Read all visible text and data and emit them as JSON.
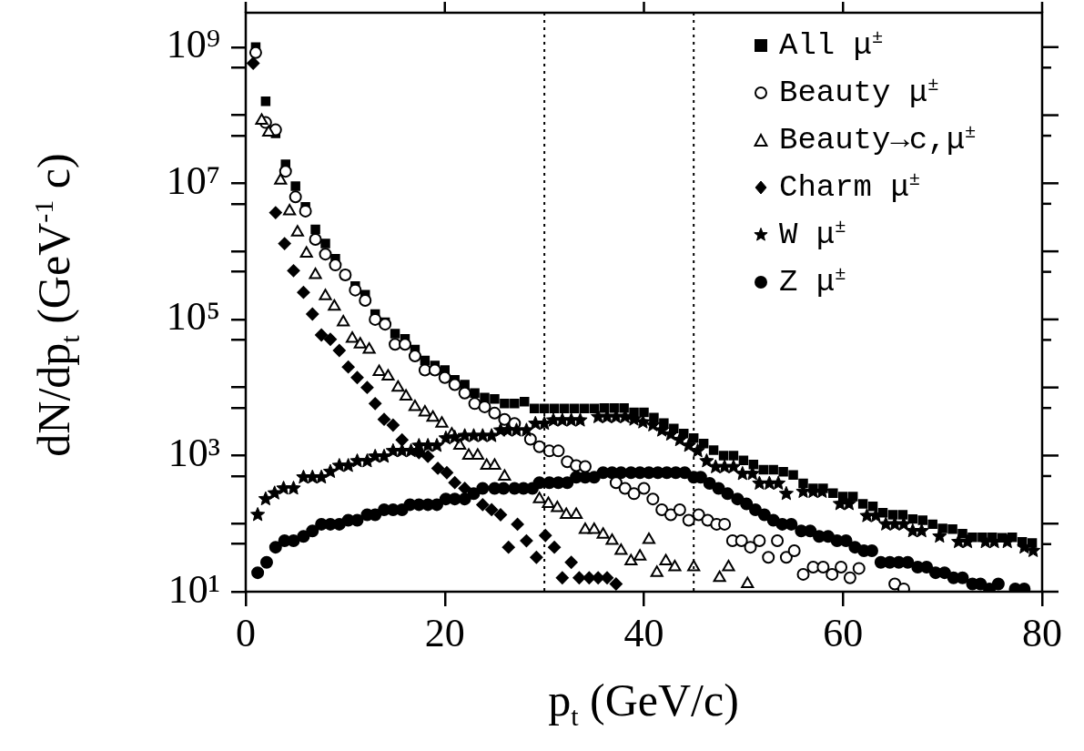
{
  "chart_data": {
    "type": "scatter",
    "xlabel": "p$_{t}$ (GeV/c)",
    "ylabel": "dN/dp$_{t}$ (GeV$^{-1}$ c)",
    "log": "y",
    "xlim": [
      0,
      80
    ],
    "xticks": [
      0,
      20,
      40,
      60,
      80
    ],
    "ylim": [
      10,
      3200000000.0
    ],
    "yticks": [
      {
        "value": 10,
        "label": "10¹"
      },
      {
        "value": 50,
        "label": null
      },
      {
        "value": 100,
        "label": null
      },
      {
        "value": 500,
        "label": null
      },
      {
        "value": 1000,
        "label": "10³"
      },
      {
        "value": 5000,
        "label": null
      },
      {
        "value": 10000,
        "label": null
      },
      {
        "value": 50000,
        "label": null
      },
      {
        "value": 100000,
        "label": "10⁵"
      },
      {
        "value": 500000,
        "label": null
      },
      {
        "value": 1000000,
        "label": null
      },
      {
        "value": 5000000,
        "label": null
      },
      {
        "value": 10000000,
        "label": "10⁷"
      },
      {
        "value": 50000000,
        "label": null
      },
      {
        "value": 100000000,
        "label": null
      },
      {
        "value": 500000000,
        "label": null
      },
      {
        "value": 1000000000,
        "label": "10⁹"
      }
    ],
    "legend": "top right",
    "ref_lines": [
      {
        "axis": "x",
        "value": 30,
        "line_style": "dotted"
      },
      {
        "axis": "x",
        "value": 45,
        "line_style": "dotted"
      }
    ],
    "series": [
      {
        "name": "All μ$^{±}$",
        "color": "#000000",
        "marker": "square",
        "x": [
          1,
          2,
          3,
          4,
          5,
          6,
          7,
          8,
          9,
          10,
          11,
          12,
          13,
          14,
          15,
          16,
          17,
          18,
          19,
          20,
          21,
          22,
          23,
          24,
          25,
          26,
          27,
          28,
          29,
          30,
          31,
          32,
          33,
          34,
          35,
          36,
          37,
          38,
          39,
          40,
          41,
          42,
          43,
          44,
          45,
          46,
          47,
          48,
          49,
          50,
          51,
          52,
          53,
          54,
          55,
          56,
          57,
          58,
          59,
          60,
          61,
          62,
          63,
          64,
          65,
          66,
          67,
          68,
          69,
          70,
          71,
          72,
          73,
          74,
          75,
          76,
          77,
          78,
          79
        ],
        "values": [
          1000000000.0,
          160000000.0,
          54000000.0,
          19000000.0,
          9100000.0,
          4500000.0,
          2100000.0,
          1300000.0,
          780000.0,
          450000.0,
          310000.0,
          230000.0,
          120000.0,
          91000.0,
          62000.0,
          52000.0,
          36000.0,
          25000.0,
          21000.0,
          18000.0,
          13000.0,
          11000.0,
          8300,
          7100,
          6800,
          5800,
          5800,
          6200,
          4900,
          4900,
          4900,
          4900,
          4900,
          4900,
          4900,
          5000,
          5000,
          5000,
          4300,
          4300,
          3600,
          3000,
          2500,
          2100,
          1800,
          1500,
          1200,
          1000,
          1000,
          850,
          740,
          620,
          620,
          580,
          520,
          390,
          330,
          330,
          280,
          250,
          250,
          195,
          180,
          145,
          135,
          135,
          117,
          112,
          98,
          85,
          83,
          71,
          63,
          63,
          63,
          62,
          63,
          54,
          52
        ]
      },
      {
        "name": "Beauty μ$^{±}$",
        "color": "#000000",
        "marker": "circle",
        "x": [
          1,
          2,
          3,
          4,
          5,
          6,
          7,
          8,
          9,
          10,
          11,
          12,
          13,
          14,
          15,
          16,
          17,
          18,
          19,
          20,
          21,
          22,
          23,
          24,
          25,
          26,
          27,
          28.6,
          29.5,
          30.5,
          31.4,
          32.3,
          33.2,
          34.1,
          37.2,
          38.1,
          39,
          40,
          40.9,
          41.8,
          42.7,
          43.6,
          44.5,
          45.5,
          46.4,
          47.3,
          48.1,
          48.9,
          49.8,
          50.7,
          51.6,
          52.5,
          53.4,
          54.3,
          55.1,
          56,
          57,
          58,
          58.9,
          59.8,
          60.7,
          61.6,
          65.2,
          66.1
        ],
        "values": [
          830000000.0,
          78000000.0,
          61000000.0,
          15000000.0,
          6300000.0,
          3900000.0,
          1500000.0,
          910000.0,
          630000.0,
          450000.0,
          270000.0,
          190000.0,
          100000.0,
          85000.0,
          43000.0,
          43000.0,
          29000.0,
          18000.0,
          18000.0,
          14000.0,
          11000.0,
          8300,
          5800,
          5200,
          4200,
          3400,
          2950,
          1740,
          1350,
          1170,
          1170,
          810,
          710,
          690,
          400,
          330,
          275,
          330,
          230,
          160,
          135,
          160,
          112,
          135,
          112,
          98,
          98,
          56,
          56,
          45,
          56,
          32,
          56,
          32,
          40,
          18,
          23,
          23,
          18,
          23,
          16,
          22,
          13,
          11
        ]
      },
      {
        "name": "Beauty→c,μ$^{±}$",
        "color": "#000000",
        "marker": "triangle",
        "x": [
          1.6,
          2.3,
          3.5,
          4.4,
          5.2,
          6.1,
          7,
          8,
          8.9,
          9.8,
          10.7,
          11.5,
          12.4,
          13.4,
          14.3,
          15.3,
          16.1,
          17,
          18,
          18.8,
          19.7,
          20.7,
          21.5,
          22.4,
          23.3,
          24.2,
          25,
          26,
          29.5,
          30.4,
          31.3,
          32.2,
          33.2,
          34.1,
          35,
          35.9,
          36.8,
          37.7,
          38.7,
          39.6,
          40.5,
          41.3,
          42.2,
          43.1,
          45,
          47.6,
          48.5,
          50.4
        ],
        "values": [
          83000000.0,
          56000000.0,
          11000000.0,
          3900000.0,
          1900000.0,
          930000.0,
          450000.0,
          220000.0,
          155000.0,
          91000.0,
          52000.0,
          43000.0,
          36000.0,
          17000.0,
          14500.0,
          10000.0,
          7400,
          5200,
          4300,
          3600,
          2950,
          2050,
          1400,
          1000,
          1000,
          710,
          710,
          490,
          230,
          195,
          170,
          135,
          135,
          81,
          81,
          69,
          56,
          40,
          28,
          33,
          58,
          19,
          28,
          23,
          23,
          16,
          23,
          13
        ]
      },
      {
        "name": "Charm μ$^{±}$",
        "color": "#000000",
        "marker": "diamond",
        "x": [
          0.75,
          3,
          3.9,
          4.8,
          5.8,
          6.7,
          7.6,
          8.5,
          9.4,
          10.3,
          11.2,
          12.2,
          13,
          13.9,
          14.8,
          15.7,
          17.4,
          18.3,
          19.3,
          20.2,
          21,
          22,
          23.8,
          24.7,
          25.6,
          26.4,
          27.3,
          28.2,
          29.2,
          30.1,
          31,
          31.8,
          32.7,
          33.5,
          34.5,
          35.4,
          36.3,
          37.2
        ],
        "values": [
          580000000.0,
          3700000.0,
          1300000.0,
          520000.0,
          250000.0,
          120000.0,
          59000.0,
          51000.0,
          35000.0,
          20000.0,
          14000.0,
          10000.0,
          5800,
          3400,
          2800,
          1700,
          1100,
          970,
          650,
          560,
          400,
          330,
          190,
          160,
          135,
          45,
          98,
          56,
          32,
          67,
          45,
          16,
          27,
          16,
          16,
          16,
          16,
          13
        ]
      },
      {
        "name": "W μ$^{±}$",
        "color": "#000000",
        "marker": "star",
        "x": [
          1.2,
          2,
          2.9,
          3.8,
          4.8,
          5.8,
          6.7,
          7.6,
          8.5,
          9.4,
          10.3,
          11.2,
          12.2,
          13,
          13.9,
          14.8,
          15.7,
          16.6,
          17.4,
          18.3,
          19.2,
          20.1,
          21,
          22,
          22.9,
          23.8,
          24.7,
          25.6,
          26.3,
          27.2,
          28.2,
          29.1,
          30,
          30.9,
          31.8,
          32.7,
          33.6,
          35.4,
          36.3,
          37.2,
          38.1,
          39,
          39.9,
          40.9,
          41.8,
          42.7,
          43.6,
          44.5,
          45.4,
          46.3,
          47.2,
          48.1,
          49,
          49.9,
          50.9,
          51.6,
          52.6,
          53.5,
          54.3,
          56,
          57,
          57.9,
          59.7,
          60.6,
          62.4,
          63.3,
          64.3,
          65.2,
          66.1,
          67,
          67.9,
          69.7,
          71.6,
          72.5,
          74.3,
          75.2,
          76.5,
          78.2,
          79.1
        ],
        "values": [
          135,
          230,
          280,
          330,
          330,
          480,
          480,
          480,
          580,
          710,
          710,
          830,
          830,
          970,
          970,
          1170,
          1170,
          1170,
          1400,
          1400,
          1400,
          1800,
          1850,
          1950,
          1950,
          1950,
          1950,
          2350,
          2350,
          2350,
          2350,
          2950,
          2950,
          3300,
          3300,
          3300,
          3300,
          3700,
          3700,
          3700,
          3700,
          3400,
          3100,
          2800,
          2350,
          2050,
          1700,
          1400,
          1170,
          830,
          680,
          680,
          680,
          540,
          540,
          390,
          390,
          390,
          275,
          295,
          295,
          295,
          195,
          195,
          130,
          130,
          98,
          98,
          98,
          78,
          78,
          65,
          54,
          54,
          54,
          54,
          54,
          45,
          40
        ]
      },
      {
        "name": "Z μ$^{±}$",
        "color": "#000000",
        "marker": "circle",
        "x": [
          1.2,
          2.1,
          3,
          3.9,
          4.8,
          5.8,
          6.7,
          7.6,
          8.5,
          9.4,
          10.3,
          11.2,
          12.2,
          13,
          13.9,
          14.8,
          15.7,
          16.5,
          17.4,
          18.3,
          19.2,
          20.1,
          21,
          22,
          22.9,
          23.8,
          25,
          25.9,
          27,
          27.9,
          28.8,
          29.5,
          30.5,
          31.4,
          32.3,
          33.2,
          34.1,
          35,
          35.9,
          36.8,
          37.7,
          38.7,
          39.6,
          40.5,
          41.4,
          42.3,
          43.2,
          44.1,
          45,
          45.7,
          46.6,
          47.5,
          48.4,
          49.4,
          50.3,
          51.2,
          52.1,
          53,
          53.9,
          54.8,
          55.8,
          56.7,
          57.6,
          58.5,
          59.4,
          60.3,
          61.2,
          62.1,
          62.9,
          63.8,
          64.7,
          65.6,
          66.5,
          67.5,
          68.4,
          69.3,
          70.2,
          71.1,
          72,
          73,
          73.8,
          74.7,
          75.6,
          77.3,
          78.2
        ],
        "values": [
          19,
          27,
          45,
          56,
          56,
          65,
          78,
          98,
          98,
          98,
          112,
          112,
          135,
          135,
          160,
          160,
          160,
          190,
          190,
          190,
          190,
          230,
          230,
          230,
          275,
          330,
          330,
          330,
          330,
          330,
          330,
          400,
          400,
          400,
          400,
          480,
          480,
          480,
          560,
          560,
          560,
          560,
          560,
          560,
          560,
          560,
          560,
          560,
          480,
          480,
          390,
          330,
          275,
          230,
          195,
          160,
          135,
          112,
          98,
          98,
          78,
          78,
          65,
          65,
          56,
          56,
          45,
          40,
          40,
          27,
          27,
          27,
          27,
          23,
          23,
          19,
          19,
          16,
          16,
          13,
          13,
          11,
          13,
          11,
          11
        ]
      }
    ]
  }
}
